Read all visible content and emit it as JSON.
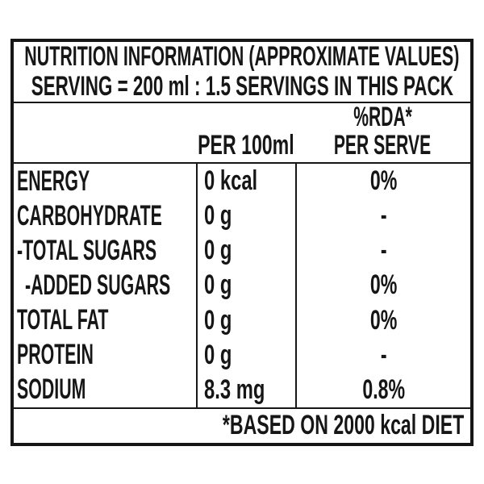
{
  "header": {
    "title": "NUTRITION INFORMATION (APPROXIMATE VALUES)",
    "serving": "SERVING = 200 ml : 1.5 SERVINGS IN THIS PACK"
  },
  "columns": {
    "nutrient": "",
    "per_100ml": "PER 100ml",
    "rda_line1": "%RDA*",
    "rda_line2": "PER SERVE"
  },
  "rows": [
    {
      "label": "ENERGY",
      "indent": false,
      "per_100ml": "0 kcal",
      "rda_per_serve": "0%"
    },
    {
      "label": "CARBOHYDRATE",
      "indent": false,
      "per_100ml": "0 g",
      "rda_per_serve": "-"
    },
    {
      "label": "-TOTAL SUGARS",
      "indent": false,
      "per_100ml": "0 g",
      "rda_per_serve": "-"
    },
    {
      "label": "-ADDED SUGARS",
      "indent": true,
      "per_100ml": "0 g",
      "rda_per_serve": "0%"
    },
    {
      "label": "TOTAL FAT",
      "indent": false,
      "per_100ml": "0 g",
      "rda_per_serve": "0%"
    },
    {
      "label": "PROTEIN",
      "indent": false,
      "per_100ml": "0 g",
      "rda_per_serve": "-"
    },
    {
      "label": "SODIUM",
      "indent": false,
      "per_100ml": "8.3 mg",
      "rda_per_serve": "0.8%"
    }
  ],
  "footer": {
    "note": "*BASED ON 2000 kcal DIET"
  },
  "colors": {
    "ink": "#161616",
    "background": "#ffffff"
  }
}
